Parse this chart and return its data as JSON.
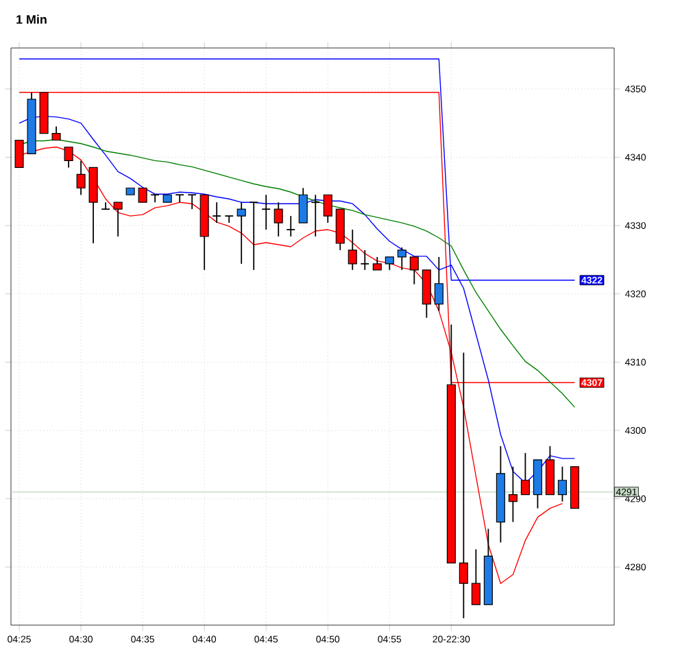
{
  "chart_data": {
    "type": "candlestick",
    "title": "1 Min",
    "categories": [
      "04:25",
      null,
      null,
      null,
      null,
      "04:30",
      null,
      null,
      null,
      null,
      "04:35",
      null,
      null,
      null,
      null,
      "04:40",
      null,
      null,
      null,
      null,
      "04:45",
      null,
      null,
      null,
      null,
      "04:50",
      null,
      null,
      null,
      null,
      "04:55",
      null,
      null,
      null,
      null,
      "20-22:30",
      null,
      null,
      null,
      null,
      null,
      null,
      null,
      null,
      null,
      null
    ],
    "ohlc": [
      [
        4342.5,
        4342.5,
        4338.5,
        4338.5
      ],
      [
        4340.5,
        4349.5,
        4340.5,
        4348.5
      ],
      [
        4349.5,
        4349.5,
        4343.5,
        4343.5
      ],
      [
        4343.5,
        4344.5,
        4342.5,
        4342.5
      ],
      [
        4341.5,
        4341.5,
        4338.5,
        4339.5
      ],
      [
        4337.5,
        4339.5,
        4334.5,
        4335.5
      ],
      [
        4338.5,
        4338.5,
        4327.4,
        4333.4
      ],
      [
        4332.4,
        4333.4,
        4332.4,
        4332.4
      ],
      [
        4333.4,
        4333.4,
        4328.4,
        4332.4
      ],
      [
        4334.5,
        4335.5,
        4334.5,
        4335.5
      ],
      [
        4335.5,
        4335.5,
        4333.4,
        4333.4
      ],
      [
        4334.5,
        4334.5,
        4333.4,
        4334.5
      ],
      [
        4333.4,
        4334.5,
        4333.4,
        4334.5
      ],
      [
        4334.5,
        4334.5,
        4333.4,
        4334.5
      ],
      [
        4334.5,
        4334.5,
        4332.4,
        4334.5
      ],
      [
        4334.5,
        4334.5,
        4323.5,
        4328.4
      ],
      [
        4331.4,
        4333.4,
        4330.4,
        4331.4
      ],
      [
        4331.4,
        4331.4,
        4330.4,
        4331.4
      ],
      [
        4331.4,
        4333.4,
        4324.4,
        4332.4
      ],
      [
        4333.4,
        4333.4,
        4323.5,
        4333.4
      ],
      [
        4332.4,
        4334.5,
        4329.4,
        4332.4
      ],
      [
        4332.4,
        4333.4,
        4328.4,
        4330.4
      ],
      [
        4329.4,
        4331.4,
        4328.4,
        4329.4
      ],
      [
        4330.4,
        4335.5,
        4330.4,
        4334.5
      ],
      [
        4333.4,
        4334.5,
        4328.4,
        4333.4
      ],
      [
        4334.5,
        4334.5,
        4330.4,
        4331.4
      ],
      [
        4332.4,
        4332.4,
        4326.4,
        4327.4
      ],
      [
        4326.4,
        4329.4,
        4323.5,
        4324.4
      ],
      [
        4324.4,
        4326.4,
        4323.5,
        4324.4
      ],
      [
        4324.4,
        4325.4,
        4323.5,
        4323.5
      ],
      [
        4324.4,
        4325.4,
        4323.5,
        4325.4
      ],
      [
        4325.4,
        4326.8,
        4323.5,
        4326.4
      ],
      [
        4325.4,
        4325.4,
        4321.4,
        4323.5
      ],
      [
        4323.5,
        4323.5,
        4316.5,
        4318.5
      ],
      [
        4318.5,
        4325.4,
        4317.5,
        4321.5
      ],
      [
        4306.7,
        4315.5,
        4280.6,
        4280.6
      ],
      [
        4280.6,
        4311.4,
        4272.5,
        4277.6
      ],
      [
        4277.6,
        4282.6,
        4274.5,
        4274.5
      ],
      [
        4274.5,
        4285.6,
        4274.5,
        4281.6
      ],
      [
        4286.6,
        4297.7,
        4283.6,
        4293.7
      ],
      [
        4290.6,
        4294.7,
        4286.6,
        4289.6
      ],
      [
        4292.7,
        4296.7,
        4290.6,
        4290.6
      ],
      [
        4290.6,
        4295.7,
        4288.6,
        4295.7
      ],
      [
        4295.7,
        4297.7,
        4290.6,
        4290.6
      ],
      [
        4290.6,
        4294.7,
        4289.6,
        4292.7
      ],
      [
        4294.7,
        4294.7,
        4288.6,
        4288.6
      ]
    ],
    "colors": [
      "#ff0000",
      "#1e7be6",
      "#ff0000",
      "#ff0000",
      "#ff0000",
      "#ff0000",
      "#ff0000",
      "#000000",
      "#ff0000",
      "#1e7be6",
      "#ff0000",
      "#000000",
      "#1e7be6",
      "#000000",
      "#000000",
      "#ff0000",
      "#000000",
      "#000000",
      "#1e7be6",
      "#000000",
      "#000000",
      "#ff0000",
      "#000000",
      "#1e7be6",
      "#000000",
      "#ff0000",
      "#ff0000",
      "#ff0000",
      "#000000",
      "#ff0000",
      "#1e7be6",
      "#1e7be6",
      "#ff0000",
      "#ff0000",
      "#1e7be6",
      "#ff0000",
      "#ff0000",
      "#ff0000",
      "#1e7be6",
      "#1e7be6",
      "#ff0000",
      "#ff0000",
      "#1e7be6",
      "#ff0000",
      "#1e7be6",
      "#ff0000"
    ],
    "series": [
      {
        "type": "line",
        "color": "#0000ff",
        "values": [
          4354.4,
          4354.4,
          4354.4,
          4354.4,
          4354.4,
          4354.4,
          4354.4,
          4354.4,
          4354.4,
          4354.4,
          4354.4,
          4354.4,
          4354.4,
          4354.4,
          4354.4,
          4354.4,
          4354.4,
          4354.4,
          4354.4,
          4354.4,
          4354.4,
          4354.4,
          4354.4,
          4354.4,
          4354.4,
          4354.4,
          4354.4,
          4354.4,
          4354.4,
          4354.4,
          4354.4,
          4354.4,
          4354.4,
          4354.4,
          4354.4,
          4322,
          4322,
          4322,
          4322,
          4322,
          4322,
          4322,
          4322,
          4322,
          4322,
          4322
        ],
        "value_labels": [
          null,
          null,
          null,
          null,
          null,
          null,
          null,
          null,
          null,
          null,
          null,
          null,
          null,
          null,
          null,
          null,
          null,
          null,
          null,
          null,
          null,
          null,
          null,
          null,
          null,
          null,
          null,
          null,
          null,
          null,
          null,
          null,
          null,
          null,
          null,
          null,
          null,
          null,
          null,
          null,
          null,
          null,
          null,
          null,
          null,
          "4322"
        ]
      },
      {
        "type": "line",
        "color": "#ff0000",
        "values": [
          4349.5,
          4349.5,
          4349.5,
          4349.5,
          4349.5,
          4349.5,
          4349.5,
          4349.5,
          4349.5,
          4349.5,
          4349.5,
          4349.5,
          4349.5,
          4349.5,
          4349.5,
          4349.5,
          4349.5,
          4349.5,
          4349.5,
          4349.5,
          4349.5,
          4349.5,
          4349.5,
          4349.5,
          4349.5,
          4349.5,
          4349.5,
          4349.5,
          4349.5,
          4349.5,
          4349.5,
          4349.5,
          4349.5,
          4349.5,
          4349.5,
          4307,
          4307,
          4307,
          4307,
          4307,
          4307,
          4307,
          4307,
          4307,
          4307,
          4307
        ],
        "value_labels": [
          null,
          null,
          null,
          null,
          null,
          null,
          null,
          null,
          null,
          null,
          null,
          null,
          null,
          null,
          null,
          null,
          null,
          null,
          null,
          null,
          null,
          null,
          null,
          null,
          null,
          null,
          null,
          null,
          null,
          null,
          null,
          null,
          null,
          null,
          null,
          null,
          null,
          null,
          null,
          null,
          null,
          null,
          null,
          null,
          null,
          "4307"
        ]
      },
      {
        "type": "line",
        "color": "#0000ff",
        "values": [
          4345,
          4345.8,
          4346,
          4345.9,
          4345.6,
          4345,
          4342.6,
          4340.3,
          4337.9,
          4336.9,
          4335.6,
          4334.6,
          4334.6,
          4334.9,
          4334.8,
          4334.6,
          4334.2,
          4333.9,
          4333.4,
          4333.4,
          4333.2,
          4333.2,
          4333.2,
          4333.2,
          4333.8,
          4333.6,
          4333.6,
          4333.2,
          4331.6,
          4329.5,
          4327.7,
          4326.5,
          4325.5,
          4325.5,
          4323.5,
          4324.2,
          4320.8,
          4314.1,
          4307.4,
          4299.4,
          4294,
          4292.3,
          4294,
          4296.3,
          4295.9,
          4295.9
        ]
      },
      {
        "type": "line",
        "color": "#ff0000",
        "values": [
          4340.3,
          4340.8,
          4341.3,
          4341.5,
          4340.9,
          4339.6,
          4336.9,
          4333.9,
          4331.9,
          4331.4,
          4331.6,
          4332.6,
          4332.9,
          4333.4,
          4333.2,
          4331.9,
          4330.5,
          4329.9,
          4328.9,
          4327.2,
          4327.5,
          4327.2,
          4326.9,
          4328.2,
          4329.2,
          4329.4,
          4328.9,
          4327.5,
          4325.9,
          4324.8,
          4324.5,
          4323.8,
          4323.5,
          4321.5,
          4317.5,
          4311.4,
          4303.4,
          4293.3,
          4283.3,
          4277.6,
          4278.9,
          4283.9,
          4287.3,
          4288.6,
          4289.3,
          null
        ]
      },
      {
        "type": "line",
        "color": "#008000",
        "values": [
          4341.8,
          4342.4,
          4342.4,
          4342.6,
          4342.3,
          4342,
          4341.5,
          4340.9,
          4340.6,
          4340.3,
          4339.9,
          4339.5,
          4339.3,
          4338.9,
          4338.6,
          4338.1,
          4337.6,
          4337.1,
          4336.6,
          4336.1,
          4335.7,
          4335.4,
          4334.9,
          4334.2,
          4333.6,
          4333,
          4332.6,
          4332.2,
          4331.6,
          4331.2,
          4330.8,
          4330.4,
          4329.9,
          4329.2,
          4328.2,
          4327,
          4323.5,
          4320.2,
          4317.5,
          4314.8,
          4312.4,
          4310.1,
          4308.8,
          4307.1,
          4305.4,
          4303.4
        ]
      }
    ],
    "ref_lines": [
      {
        "axis": "y",
        "value": 4291,
        "label": "4291",
        "color": "#c8dcc8"
      }
    ],
    "ylim": [
      4271.5,
      4356
    ],
    "yticks": [
      4280,
      4290,
      4300,
      4310,
      4320,
      4330,
      4340,
      4350
    ],
    "grid": true
  }
}
